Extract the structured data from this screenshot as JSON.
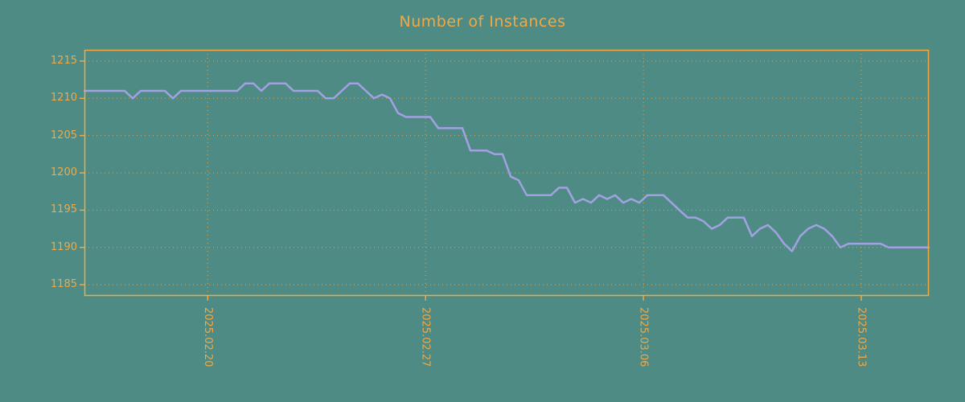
{
  "chart": {
    "title": "Number of Instances"
  },
  "colors": {
    "background": "#4e8b84",
    "accent_orange": "#f5a742",
    "line_purple": "#a2a2e2"
  },
  "chart_data": {
    "type": "line",
    "title": "Number of Instances",
    "xlabel": "",
    "ylabel": "",
    "ylim": [
      1185,
      1215
    ],
    "yticks": [
      1185,
      1190,
      1195,
      1200,
      1205,
      1210,
      1215
    ],
    "xtick_labels": [
      "2025.02.20",
      "2025.02.27",
      "2025.03.06",
      "2025.03.13"
    ],
    "xtick_positions": [
      0.146,
      0.404,
      0.662,
      0.92
    ],
    "grid": "dotted",
    "legend": "none",
    "series": [
      {
        "name": "instances",
        "values": [
          1211,
          1211,
          1211,
          1211,
          1211,
          1211,
          1210,
          1211,
          1211,
          1211,
          1211,
          1210,
          1211,
          1211,
          1211,
          1211,
          1211,
          1211,
          1211,
          1211,
          1212,
          1212,
          1211,
          1212,
          1212,
          1212,
          1211,
          1211,
          1211,
          1211,
          1210,
          1210,
          1211,
          1212,
          1212,
          1211,
          1210,
          1210.5,
          1210,
          1208,
          1207.5,
          1207.5,
          1207.5,
          1207.5,
          1206,
          1206,
          1206,
          1206,
          1203,
          1203,
          1203,
          1202.5,
          1202.5,
          1199.5,
          1199,
          1197,
          1197,
          1197,
          1197,
          1198,
          1198,
          1196,
          1196.5,
          1196,
          1197,
          1196.5,
          1197,
          1196,
          1196.5,
          1196,
          1197,
          1197,
          1197,
          1196,
          1195,
          1194,
          1194,
          1193.5,
          1192.5,
          1193,
          1194,
          1194,
          1194,
          1191.5,
          1192.5,
          1193,
          1192,
          1190.5,
          1189.5,
          1191.5,
          1192.5,
          1193,
          1192.5,
          1191.5,
          1190,
          1190.5,
          1190.5,
          1190.5,
          1190.5,
          1190.5,
          1190,
          1190,
          1190,
          1190,
          1190,
          1190
        ]
      }
    ]
  }
}
